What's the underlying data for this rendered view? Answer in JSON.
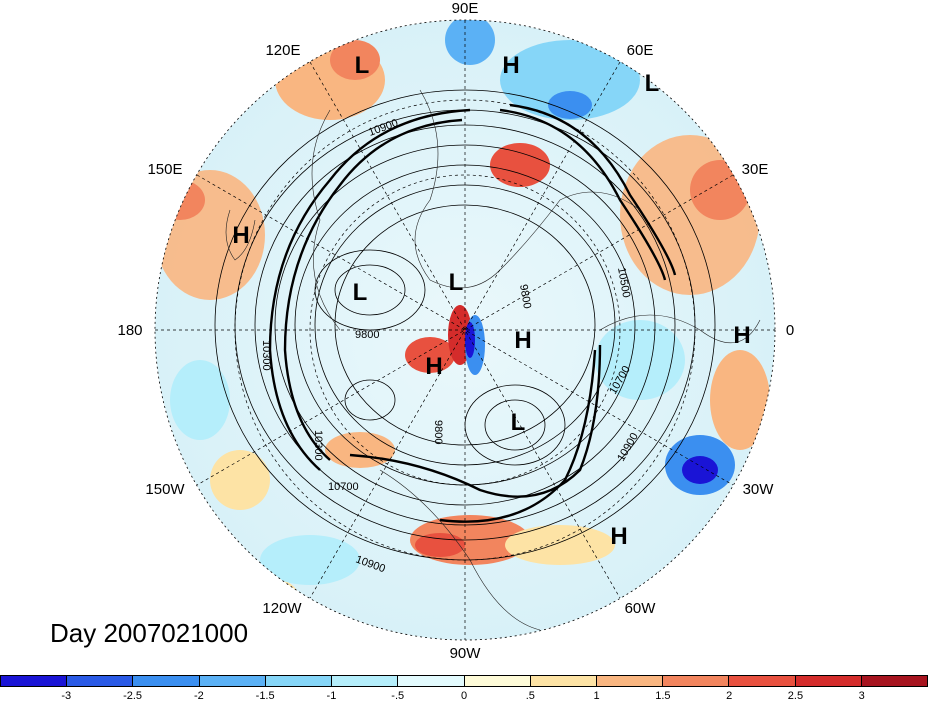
{
  "map": {
    "longitude_labels": [
      {
        "text": "90E"
      },
      {
        "text": "60E"
      },
      {
        "text": "30E"
      },
      {
        "text": "0"
      },
      {
        "text": "30W"
      },
      {
        "text": "60W"
      },
      {
        "text": "90W"
      },
      {
        "text": "120W"
      },
      {
        "text": "150W"
      },
      {
        "text": "180"
      },
      {
        "text": "150E"
      },
      {
        "text": "120E"
      }
    ],
    "pressure_centers": [
      "L",
      "H",
      "L",
      "H",
      "L",
      "L",
      "H",
      "H",
      "L",
      "H",
      "H"
    ],
    "contour_labels": [
      "10900",
      "9800",
      "9800",
      "10300",
      "10700",
      "10900",
      "10700",
      "10900",
      "10500",
      "9800",
      "10300"
    ]
  },
  "day_label": "Day 2007021000",
  "colorbar": {
    "colors": [
      "#1a14d6",
      "#2a5ae6",
      "#3b8ff0",
      "#5bb1f5",
      "#86d6f8",
      "#b5eefb",
      "#e3fbfe",
      "#fefbd8",
      "#fde3a5",
      "#f9b681",
      "#f2855e",
      "#e8513f",
      "#d42c2b",
      "#a7141f"
    ],
    "ticks": [
      "-3",
      "-2.5",
      "-2",
      "-1.5",
      "-1",
      "-.5",
      "0",
      ".5",
      "1",
      "1.5",
      "2",
      "2.5",
      "3"
    ]
  },
  "colors": {
    "cold": "#3b8ff0",
    "warm": "#f2855e",
    "neutral": "#fefbd8"
  }
}
